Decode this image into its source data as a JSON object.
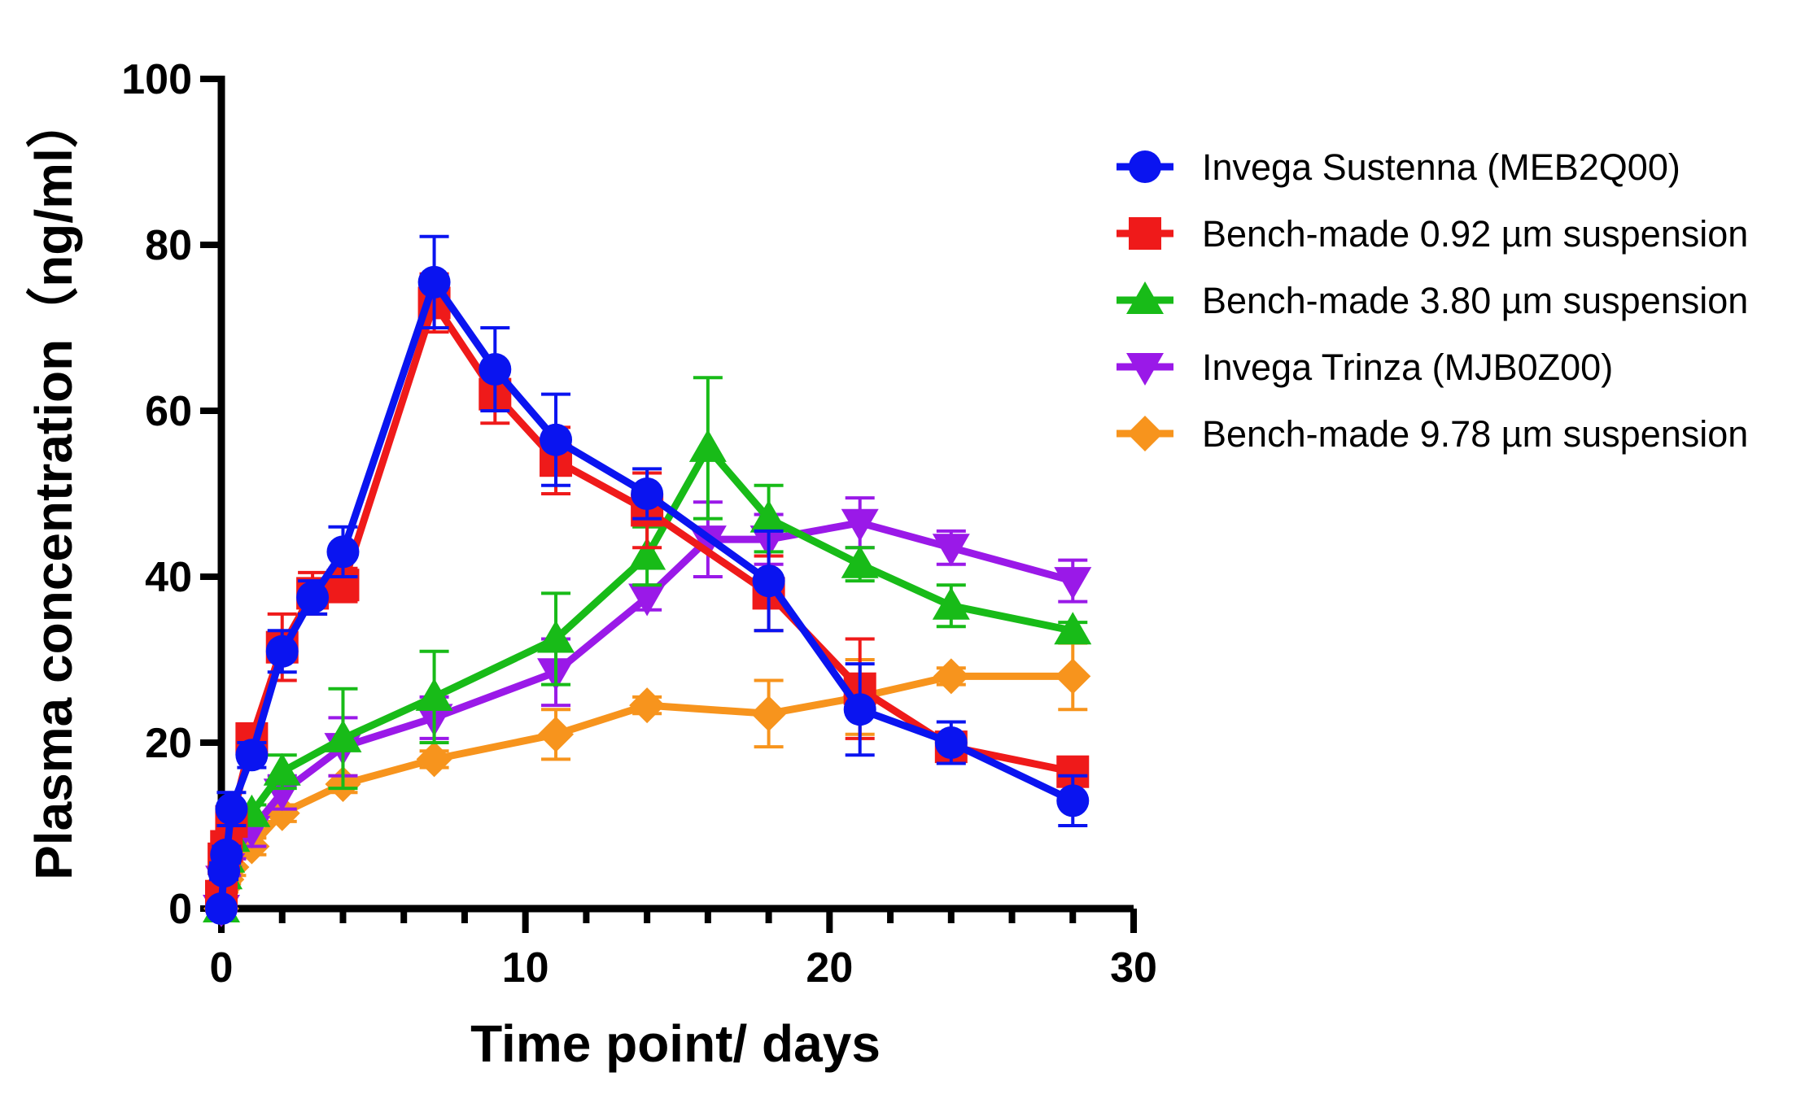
{
  "chart_data": {
    "type": "line",
    "xlabel": "Time point/  days",
    "ylabel": "Plasma concentration（ng/ml）",
    "xlim": [
      0,
      30
    ],
    "ylim": [
      0,
      100
    ],
    "xticks": [
      0,
      10,
      20,
      30
    ],
    "yticks": [
      0,
      20,
      40,
      60,
      80,
      100
    ],
    "x_minor_step": 2,
    "grid": false,
    "legend_position": "right",
    "series": [
      {
        "name": "Invega Sustenna (MEB2Q00)",
        "color": "#0a14f0",
        "marker": "circle",
        "x": [
          0,
          0.083,
          0.167,
          0.333,
          1,
          2,
          3,
          4,
          7,
          9,
          11,
          14,
          18,
          21,
          24,
          28
        ],
        "y": [
          0,
          4.5,
          6.5,
          12,
          18.5,
          31,
          37.5,
          43,
          75.5,
          65,
          56.5,
          50,
          39.5,
          24,
          20,
          13
        ],
        "err": [
          0,
          1,
          1,
          2,
          1.5,
          2.5,
          2,
          3,
          5.5,
          5,
          5.5,
          3,
          6,
          5.5,
          2.5,
          3
        ]
      },
      {
        "name": "Bench-made 0.92 µm suspension",
        "color": "#ef1a1a",
        "marker": "square",
        "x": [
          0,
          0.083,
          0.167,
          0.333,
          1,
          2,
          3,
          4,
          7,
          9,
          11,
          14,
          18,
          21,
          24,
          28
        ],
        "y": [
          1.5,
          6,
          7.5,
          10.5,
          20.5,
          31.5,
          38,
          39,
          73,
          62,
          54,
          48,
          38,
          26.5,
          19.5,
          16.5
        ],
        "err": [
          1,
          1,
          1,
          1.5,
          1.5,
          4,
          2.5,
          2,
          3.5,
          3.5,
          4,
          4.5,
          4.5,
          6,
          1.5,
          1
        ]
      },
      {
        "name": "Bench-made 3.80 µm suspension",
        "color": "#18bb18",
        "marker": "triangle-up",
        "x": [
          0,
          0.083,
          0.167,
          0.333,
          1,
          2,
          4,
          7,
          11,
          14,
          16,
          18,
          21,
          24,
          28
        ],
        "y": [
          0,
          4,
          6,
          8.5,
          11.5,
          16.5,
          20.5,
          25.5,
          32.5,
          42.5,
          55.5,
          47,
          41.5,
          36.5,
          33.5
        ],
        "err": [
          0,
          1,
          1,
          1,
          1,
          2,
          6,
          5.5,
          5.5,
          3.5,
          8.5,
          4,
          2,
          2.5,
          1
        ]
      },
      {
        "name": "Invega Trinza (MJB0Z00)",
        "color": "#9a19e8",
        "marker": "triangle-down",
        "x": [
          0,
          0.083,
          0.167,
          0.333,
          1,
          2,
          4,
          7,
          11,
          14,
          16,
          18,
          21,
          24,
          28
        ],
        "y": [
          0,
          3.5,
          5,
          7,
          9.5,
          14,
          19.5,
          23,
          28.5,
          37.5,
          44.5,
          44.5,
          46.5,
          43.5,
          39.5
        ],
        "err": [
          0,
          1,
          1,
          1,
          2,
          2,
          3.5,
          2.5,
          4,
          1.5,
          4.5,
          3,
          3,
          2,
          2.5
        ]
      },
      {
        "name": "Bench-made 9.78 µm suspension",
        "color": "#f7941d",
        "marker": "diamond",
        "x": [
          0,
          0.083,
          0.167,
          0.333,
          1,
          2,
          4,
          7,
          11,
          14,
          18,
          21,
          24,
          28
        ],
        "y": [
          0,
          2.5,
          3.5,
          5,
          7.5,
          11.5,
          15,
          18,
          21,
          24.5,
          23.5,
          25.5,
          28,
          28
        ],
        "err": [
          0,
          0.5,
          0.5,
          1,
          1,
          1,
          1,
          1,
          3,
          1,
          4,
          4.5,
          1,
          4
        ]
      }
    ]
  }
}
